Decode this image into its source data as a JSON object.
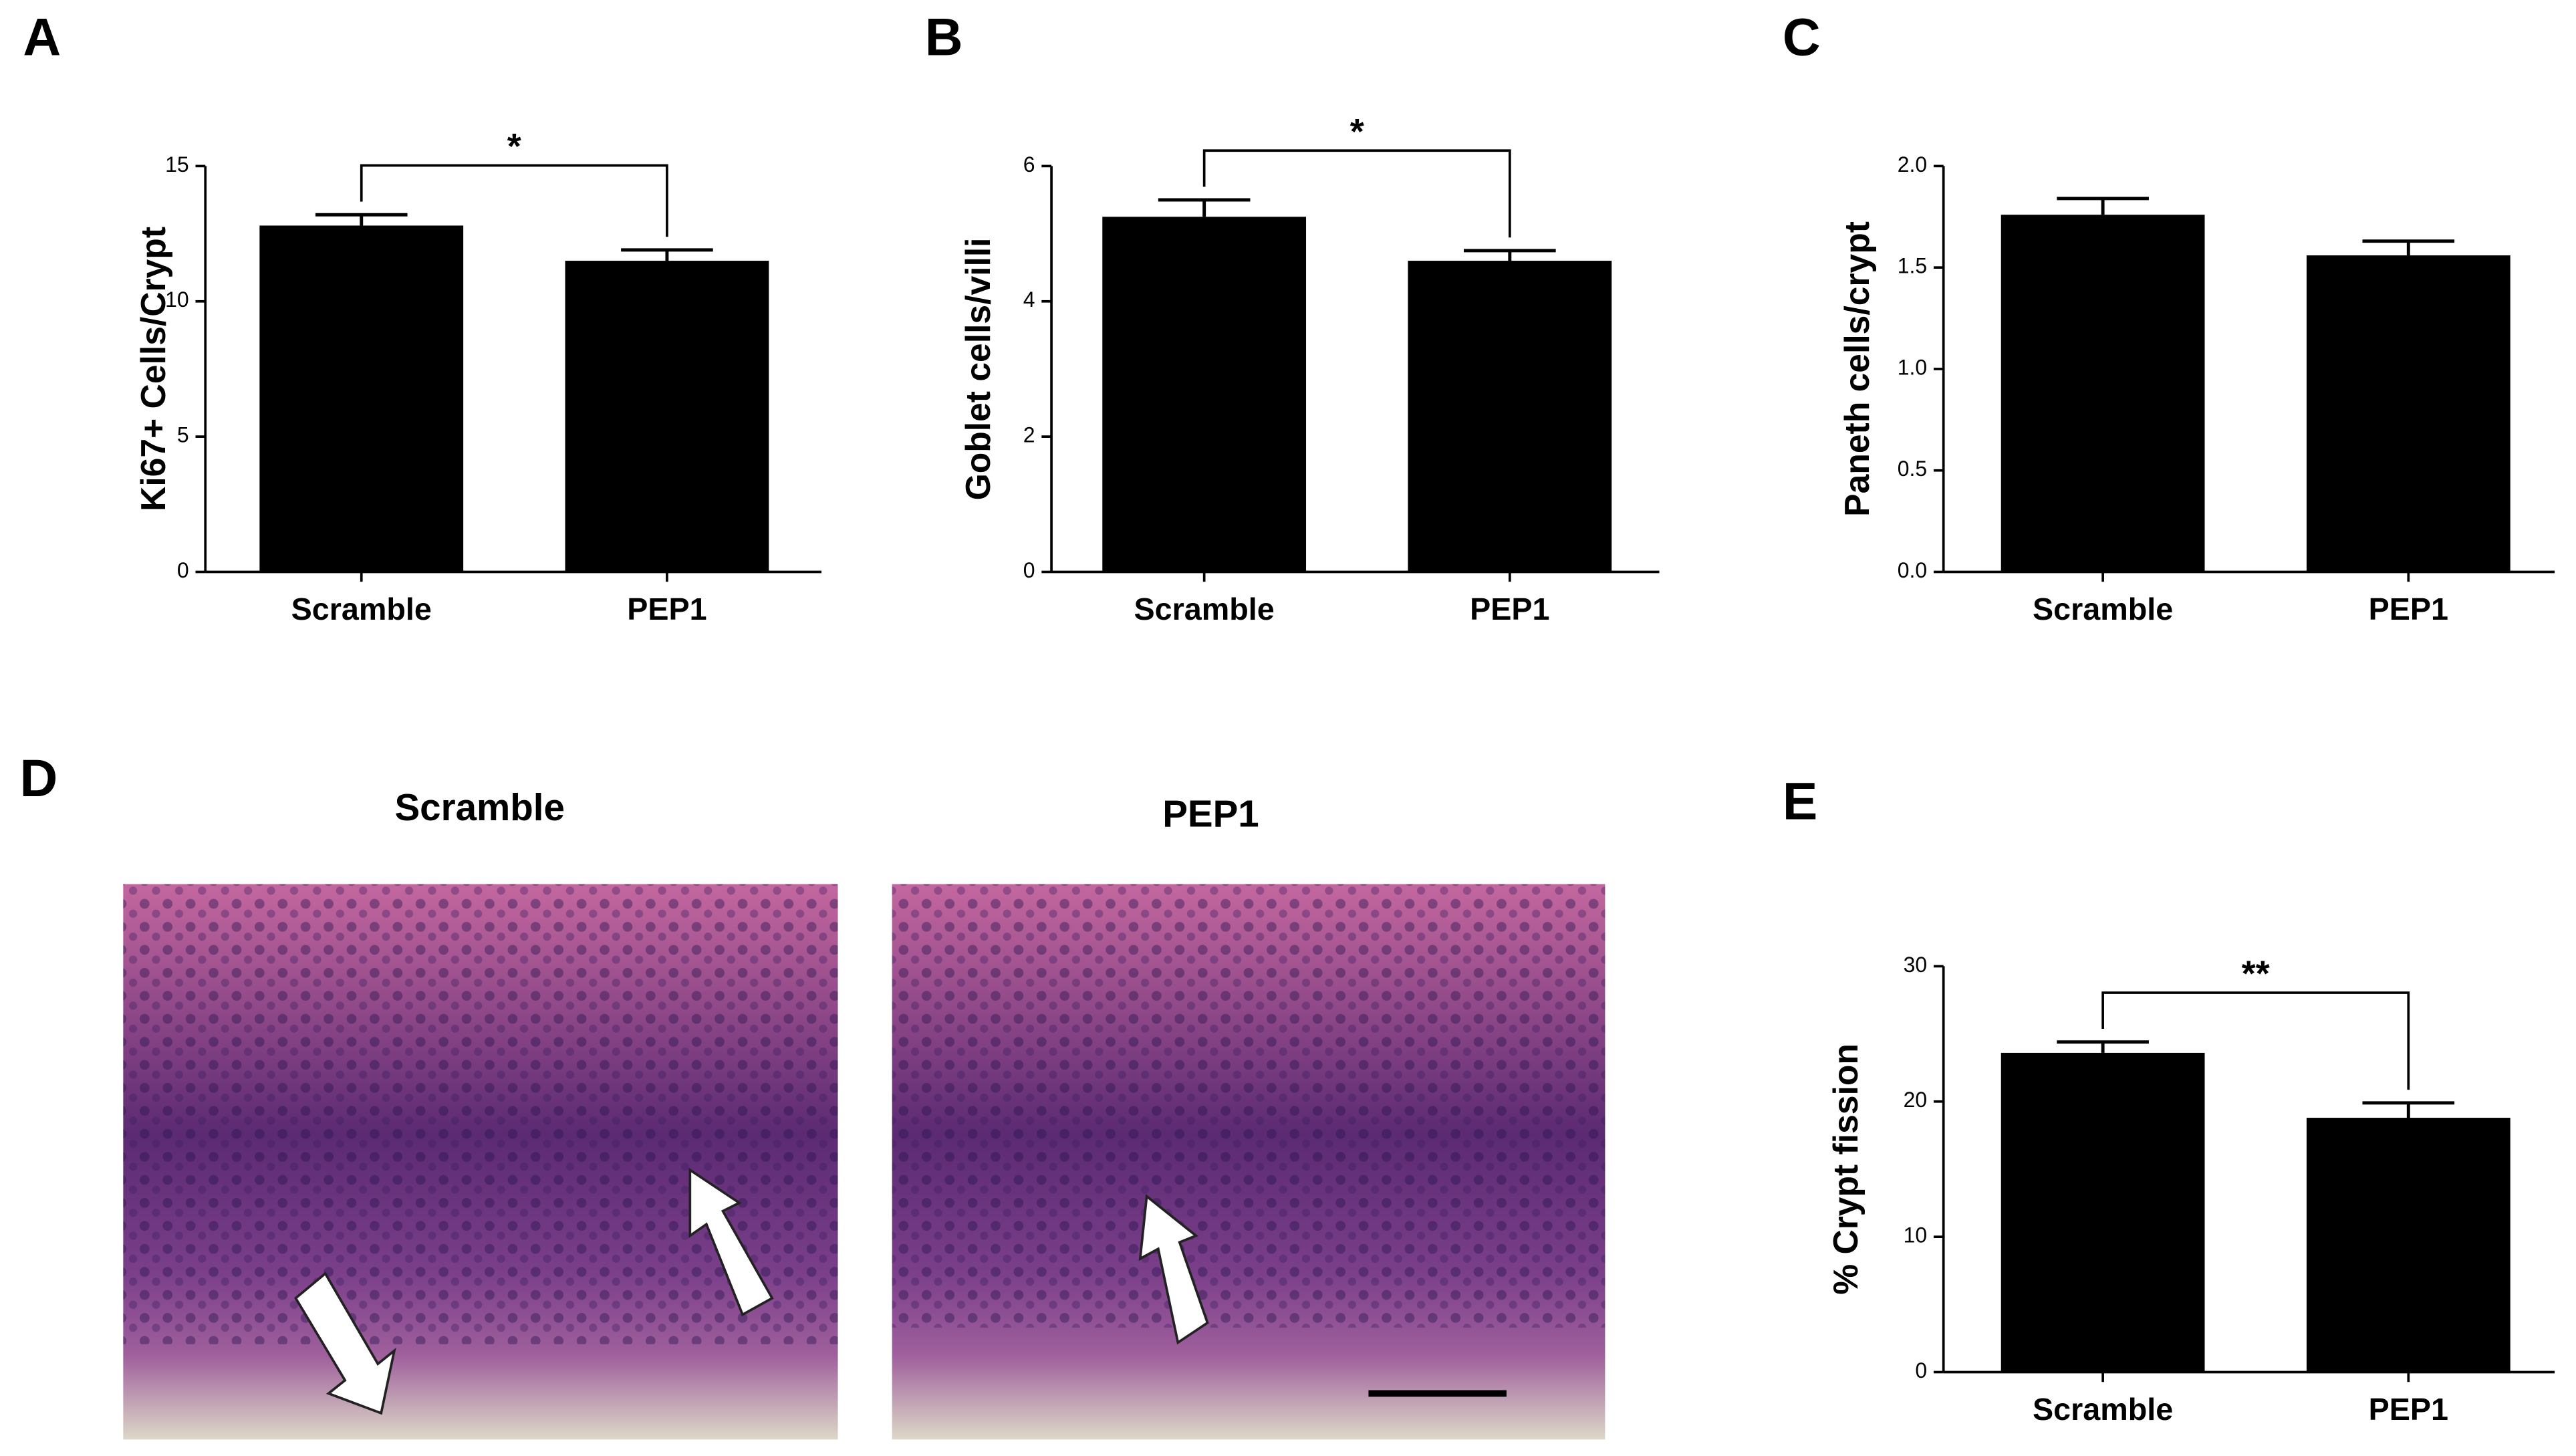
{
  "panel_letters": [
    "A",
    "B",
    "C",
    "D",
    "E"
  ],
  "images": [
    {
      "title": "Scramble"
    },
    {
      "title": "PEP1"
    }
  ],
  "chart_data": [
    {
      "type": "bar",
      "y_label": "Ki67+ Cells/Crypt",
      "categories": [
        "Scramble",
        "PEP1"
      ],
      "values": [
        12.8,
        11.5
      ],
      "errors": [
        0.4,
        0.4
      ],
      "color": "#000000",
      "ylim": [
        0,
        15
      ],
      "yticks": [
        0,
        5,
        10,
        15
      ],
      "significance": "*"
    },
    {
      "type": "bar",
      "y_label": "Goblet cells/villi",
      "categories": [
        "Scramble",
        "PEP1"
      ],
      "values": [
        5.25,
        4.6
      ],
      "errors": [
        0.25,
        0.15
      ],
      "color": "#000000",
      "ylim": [
        0,
        6
      ],
      "yticks": [
        0,
        2,
        4,
        6
      ],
      "significance": "*"
    },
    {
      "type": "bar",
      "y_label": "Paneth cells/crypt",
      "categories": [
        "Scramble",
        "PEP1"
      ],
      "values": [
        1.76,
        1.56
      ],
      "errors": [
        0.08,
        0.07
      ],
      "color": "#000000",
      "ylim": [
        0,
        2
      ],
      "yticks": [
        {
          "value": 0,
          "label": "0.0"
        },
        0.5,
        {
          "value": 1,
          "label": "1.0"
        },
        1.5,
        {
          "value": 2,
          "label": "2.0"
        }
      ]
    },
    {
      "type": "bar",
      "y_label": "% Crypt fission",
      "categories": [
        "Scramble",
        "PEP1"
      ],
      "values": [
        23.6,
        18.8
      ],
      "errors": [
        0.8,
        1.1
      ],
      "color": "#000000",
      "ylim": [
        0,
        30
      ],
      "yticks": [
        0,
        10,
        20,
        30
      ],
      "significance": "**"
    }
  ]
}
